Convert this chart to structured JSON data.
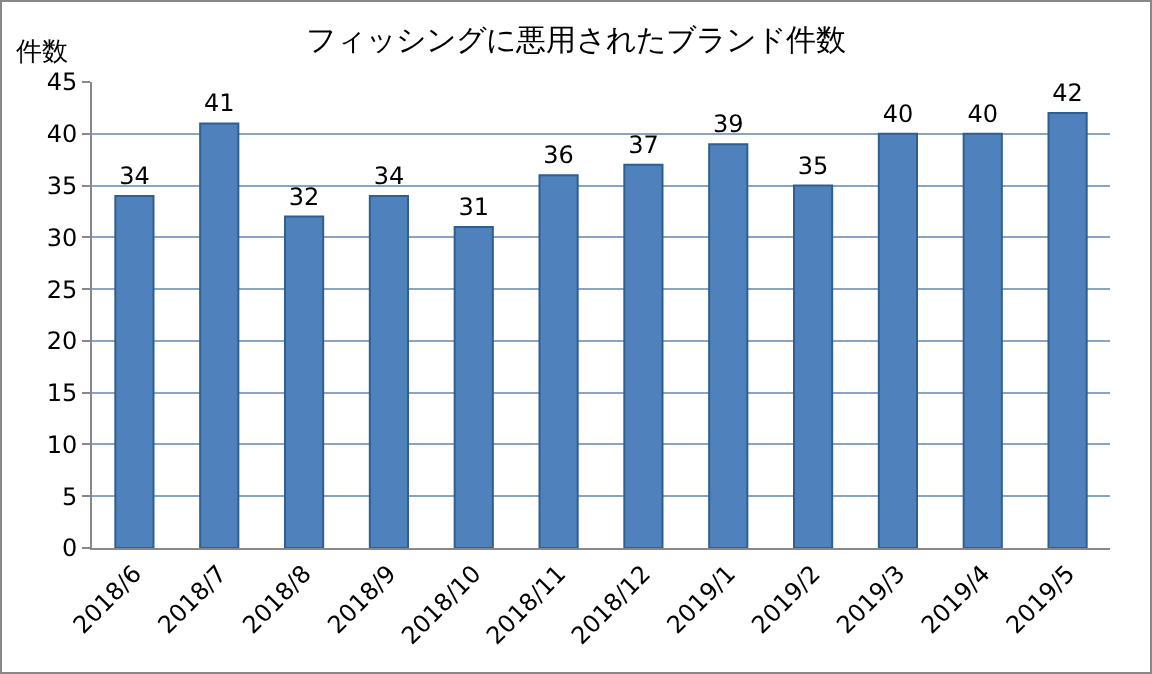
{
  "chart_data": {
    "type": "bar",
    "title": "フィッシングに悪用されたブランド件数",
    "ylabel": "件数",
    "categories": [
      "2018/6",
      "2018/7",
      "2018/8",
      "2018/9",
      "2018/10",
      "2018/11",
      "2018/12",
      "2019/1",
      "2019/2",
      "2019/3",
      "2019/4",
      "2019/5"
    ],
    "values": [
      34,
      41,
      32,
      34,
      31,
      36,
      37,
      39,
      35,
      40,
      40,
      42
    ],
    "color": "#4f81bd",
    "ylim": [
      0,
      45
    ],
    "yticks": [
      0,
      5,
      10,
      15,
      20,
      25,
      30,
      35,
      40,
      45
    ],
    "grid": "y",
    "data_labels": true,
    "legend": false
  }
}
